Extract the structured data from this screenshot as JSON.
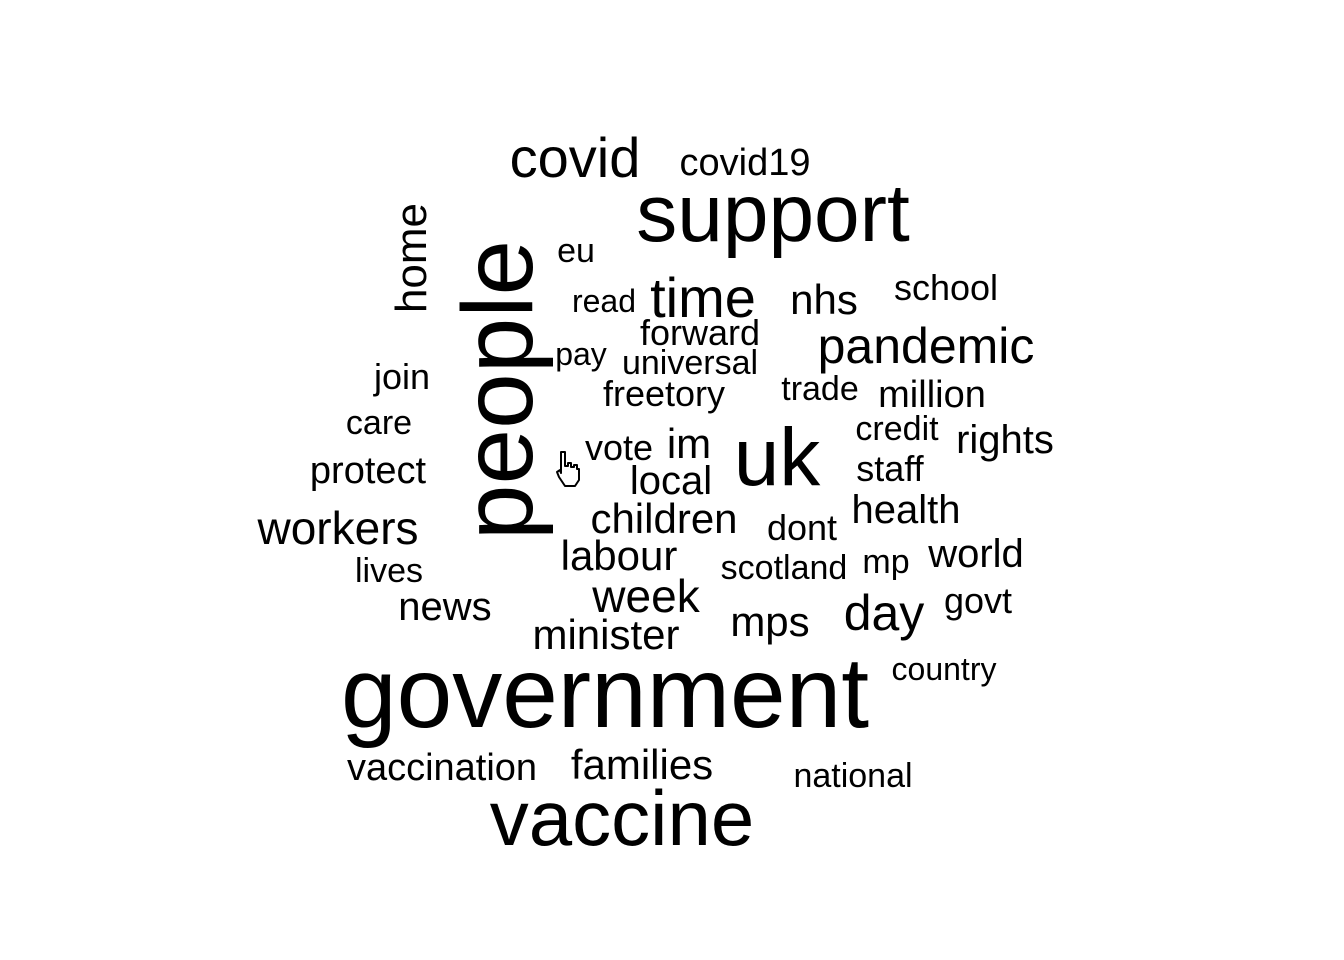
{
  "words": [
    {
      "text": "government",
      "size": 100
    },
    {
      "text": "people",
      "size": 100
    },
    {
      "text": "support",
      "size": 82
    },
    {
      "text": "uk",
      "size": 82
    },
    {
      "text": "vaccine",
      "size": 78
    },
    {
      "text": "covid",
      "size": 56
    },
    {
      "text": "pandemic",
      "size": 50
    },
    {
      "text": "time",
      "size": 56
    },
    {
      "text": "day",
      "size": 50
    },
    {
      "text": "workers",
      "size": 46
    },
    {
      "text": "week",
      "size": 46
    },
    {
      "text": "home",
      "size": 44
    },
    {
      "text": "local",
      "size": 40
    },
    {
      "text": "labour",
      "size": 42
    },
    {
      "text": "children",
      "size": 42
    },
    {
      "text": "families",
      "size": 42
    },
    {
      "text": "nhs",
      "size": 42
    },
    {
      "text": "mps",
      "size": 42
    },
    {
      "text": "minister",
      "size": 42
    },
    {
      "text": "news",
      "size": 40
    },
    {
      "text": "world",
      "size": 40
    },
    {
      "text": "health",
      "size": 40
    },
    {
      "text": "rights",
      "size": 40
    },
    {
      "text": "vaccination",
      "size": 38
    },
    {
      "text": "covid19",
      "size": 38
    },
    {
      "text": "im",
      "size": 42
    },
    {
      "text": "million",
      "size": 38
    },
    {
      "text": "protect",
      "size": 38
    },
    {
      "text": "dont",
      "size": 36
    },
    {
      "text": "vote",
      "size": 36
    },
    {
      "text": "staff",
      "size": 36
    },
    {
      "text": "freetory",
      "size": 36
    },
    {
      "text": "forward",
      "size": 36
    },
    {
      "text": "school",
      "size": 36
    },
    {
      "text": "scotland",
      "size": 34
    },
    {
      "text": "join",
      "size": 36
    },
    {
      "text": "universal",
      "size": 34
    },
    {
      "text": "mp",
      "size": 34
    },
    {
      "text": "govt",
      "size": 36
    },
    {
      "text": "credit",
      "size": 34
    },
    {
      "text": "national",
      "size": 34
    },
    {
      "text": "trade",
      "size": 34
    },
    {
      "text": "country",
      "size": 32
    },
    {
      "text": "eu",
      "size": 34
    },
    {
      "text": "read",
      "size": 32
    },
    {
      "text": "pay",
      "size": 32
    },
    {
      "text": "care",
      "size": 34
    },
    {
      "text": "lives",
      "size": 34
    }
  ],
  "cursor_icon": "hand-pointer-icon"
}
